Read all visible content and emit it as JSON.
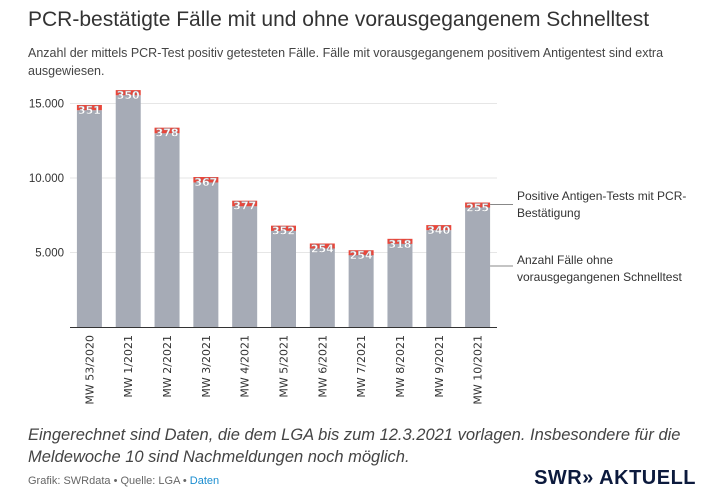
{
  "title": "PCR-bestätigte Fälle mit und ohne vorausgegangenem Schnelltest",
  "subtitle": "Anzahl der mittels PCR-Test positiv getesteten Fälle. Fälle mit vorausgegangenem positivem Antigentest sind extra ausgewiesen.",
  "note": "Eingerechnet sind Daten, die dem LGA bis zum 12.3.2021 vorlagen. Insbesondere für die Meldewoche 10 sind Nachmeldungen noch möglich.",
  "credits": {
    "text": "Grafik: SWRdata • Quelle: LGA • ",
    "link": "Daten"
  },
  "logo": "SWR» AKTUELL",
  "colors": {
    "base": "#a6abb6",
    "antigen": "#e8473b",
    "grid": "#e6e6e6",
    "axis": "#333333"
  },
  "chart_data": {
    "type": "bar",
    "stacked": true,
    "title": "PCR-bestätigte Fälle mit und ohne vorausgegangenem Schnelltest",
    "xlabel": "",
    "ylabel": "",
    "ylim": [
      0,
      16000
    ],
    "yticks": [
      5000,
      10000,
      15000
    ],
    "ytick_labels": [
      "5.000",
      "10.000",
      "15.000"
    ],
    "grid": true,
    "legend_placement": "right",
    "categories": [
      "MW 53/2020",
      "MW 1/2021",
      "MW 2/2021",
      "MW 3/2021",
      "MW 4/2021",
      "MW 5/2021",
      "MW 6/2021",
      "MW 7/2021",
      "MW 8/2021",
      "MW 9/2021",
      "MW 10/2021"
    ],
    "series": [
      {
        "name": "Anzahl Fälle ohne vorausgegangenen Schnelltest",
        "values": [
          14550,
          15550,
          13000,
          9700,
          8100,
          6450,
          5350,
          4900,
          5600,
          6500,
          8100
        ]
      },
      {
        "name": "Positive Antigen-Tests mit PCR-Bestätigung",
        "values": [
          351,
          350,
          378,
          367,
          377,
          352,
          254,
          254,
          318,
          340,
          255
        ]
      }
    ],
    "data_labels": [
      "351",
      "350",
      "378",
      "367",
      "377",
      "352",
      "254",
      "254",
      "318",
      "340",
      "255"
    ]
  }
}
